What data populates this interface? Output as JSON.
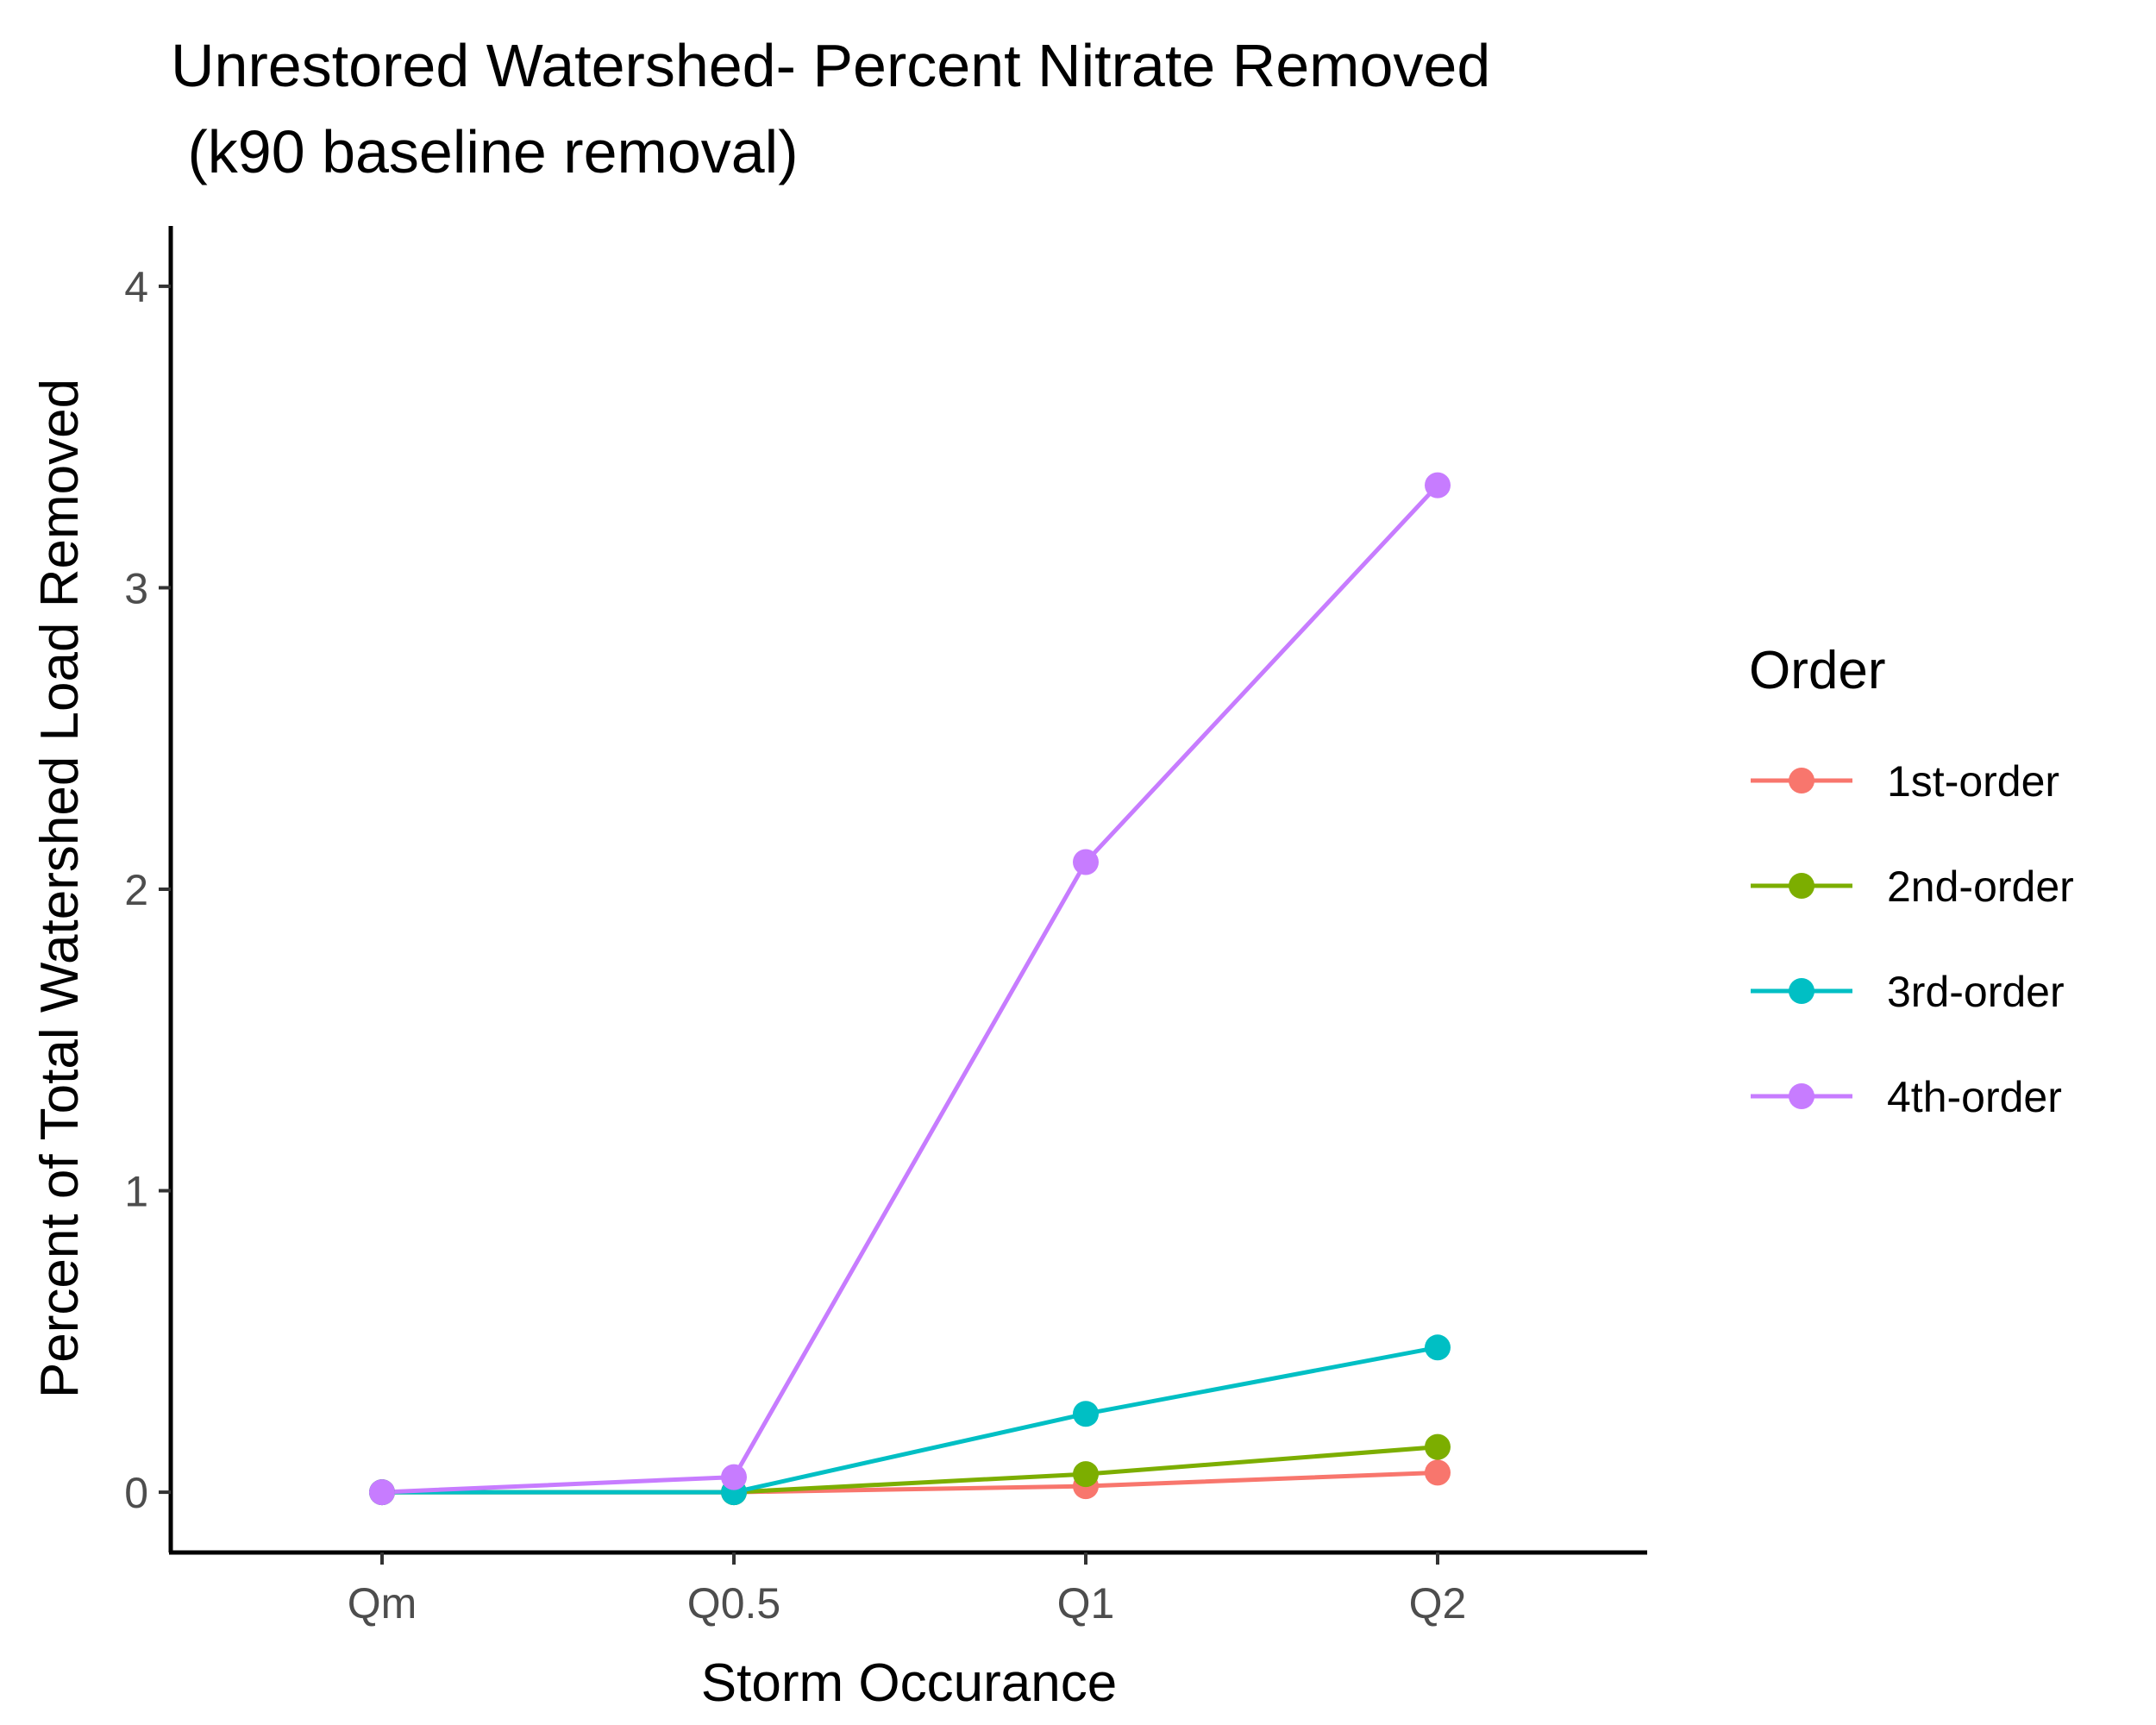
{
  "chart_data": {
    "type": "line",
    "title_line1": "Unrestored Watershed- Percent Nitrate Removed",
    "title_line2": " (k90 baseline removal)",
    "xlabel": "Storm Occurance",
    "ylabel": "Percent of Total Watershed Load Removed",
    "categories": [
      "Qm",
      "Q0.5",
      "Q1",
      "Q2"
    ],
    "ylim": [
      -0.2,
      4.2
    ],
    "yticks": [
      0,
      1,
      2,
      3,
      4
    ],
    "grid": false,
    "legend": {
      "title": "Order",
      "position": "right"
    },
    "series": [
      {
        "name": "1st-order",
        "color": "#F8766D",
        "values": [
          0,
          0,
          0.02,
          0.065
        ]
      },
      {
        "name": "2nd-order",
        "color": "#7CAE00",
        "values": [
          0,
          0,
          0.06,
          0.15
        ]
      },
      {
        "name": "3rd-order",
        "color": "#00BFC4",
        "values": [
          0,
          0,
          0.26,
          0.48
        ]
      },
      {
        "name": "4th-order",
        "color": "#C77CFF",
        "values": [
          0,
          0.05,
          2.09,
          3.34
        ]
      }
    ]
  }
}
